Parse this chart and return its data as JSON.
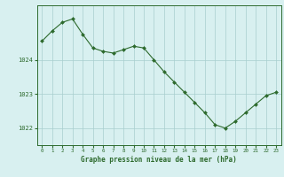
{
  "x": [
    0,
    1,
    2,
    3,
    4,
    5,
    6,
    7,
    8,
    9,
    10,
    11,
    12,
    13,
    14,
    15,
    16,
    17,
    18,
    19,
    20,
    21,
    22,
    23
  ],
  "y": [
    1024.55,
    1024.85,
    1025.1,
    1025.2,
    1024.75,
    1024.35,
    1024.25,
    1024.2,
    1024.3,
    1024.4,
    1024.35,
    1024.0,
    1023.65,
    1023.35,
    1023.05,
    1022.75,
    1022.45,
    1022.1,
    1022.0,
    1022.2,
    1022.45,
    1022.7,
    1022.95,
    1023.05
  ],
  "xlabel": "Graphe pression niveau de la mer (hPa)",
  "yticks": [
    1022,
    1023,
    1024
  ],
  "xticks": [
    0,
    1,
    2,
    3,
    4,
    5,
    6,
    7,
    8,
    9,
    10,
    11,
    12,
    13,
    14,
    15,
    16,
    17,
    18,
    19,
    20,
    21,
    22,
    23
  ],
  "line_color": "#2d6a2d",
  "marker_color": "#2d6a2d",
  "bg_color": "#d8f0f0",
  "grid_color": "#a8cece",
  "axis_color": "#2d6a2d",
  "text_color": "#2d6a2d",
  "ylim": [
    1021.5,
    1025.6
  ],
  "xlim": [
    -0.5,
    23.5
  ]
}
